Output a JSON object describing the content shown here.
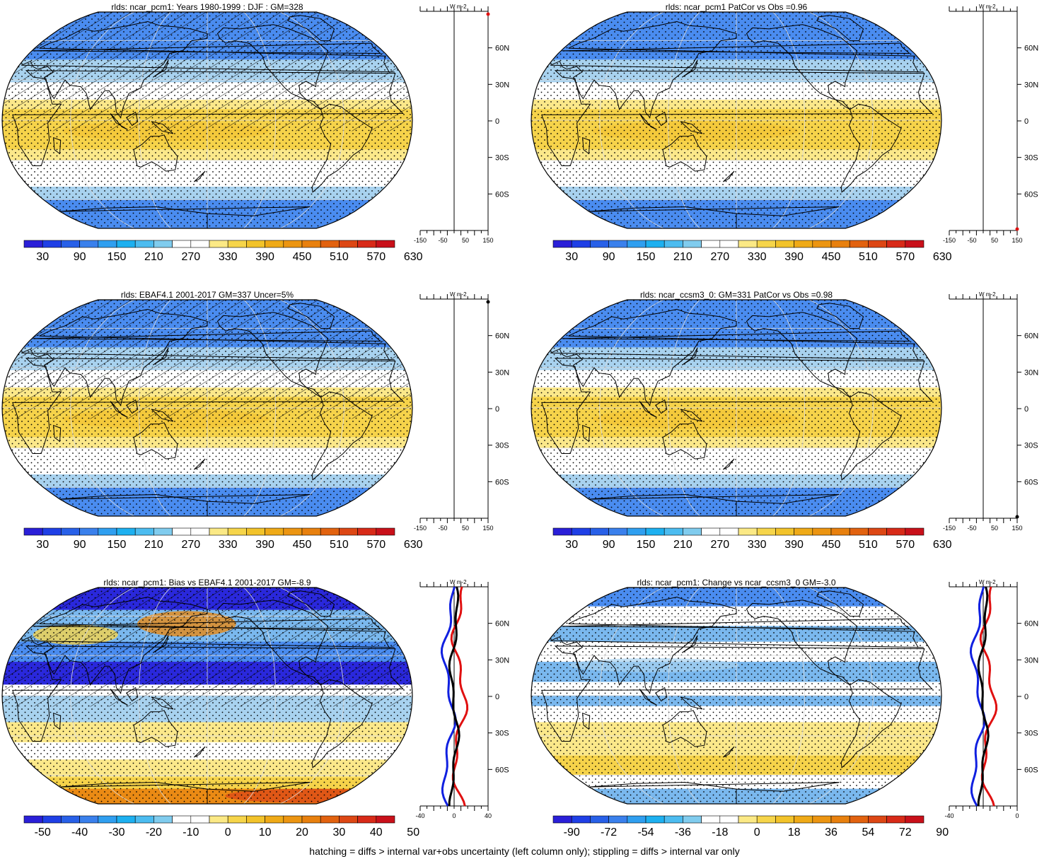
{
  "panels": [
    {
      "title": "rlds: ncar_pcm1: Years 1980-1999 : DJF : GM=328",
      "map_kind": "mean",
      "colorbar_labels": [
        "30",
        "90",
        "150",
        "210",
        "270",
        "330",
        "390",
        "450",
        "510",
        "570",
        "630"
      ],
      "profile_axis": {
        "unit": "W m-2",
        "x_ticks": [
          "-150",
          "-50",
          "50",
          "150"
        ],
        "lat_ticks": [
          "60N",
          "30N",
          "0",
          "30S",
          "60S"
        ]
      }
    },
    {
      "title": "rlds: ncar_pcm1 PatCor vs Obs =0.96",
      "map_kind": "mean",
      "colorbar_labels": [
        "30",
        "90",
        "150",
        "210",
        "270",
        "330",
        "390",
        "450",
        "510",
        "570",
        "630"
      ],
      "profile_axis": {
        "unit": "W m-2",
        "x_ticks": [
          "-150",
          "-50",
          "50",
          "150"
        ],
        "lat_ticks": [
          "60N",
          "30N",
          "0",
          "30S",
          "60S"
        ]
      }
    },
    {
      "title": "rlds: EBAF4.1 2001-2017 GM=337 Uncer=5%",
      "map_kind": "mean",
      "colorbar_labels": [
        "30",
        "90",
        "150",
        "210",
        "270",
        "330",
        "390",
        "450",
        "510",
        "570",
        "630"
      ],
      "profile_axis": {
        "unit": "W m-2",
        "x_ticks": [
          "-150",
          "-50",
          "50",
          "150"
        ],
        "lat_ticks": [
          "60N",
          "30N",
          "0",
          "30S",
          "60S"
        ]
      }
    },
    {
      "title": "rlds: ncar_ccsm3_0: GM=331 PatCor vs Obs =0.98",
      "map_kind": "mean",
      "colorbar_labels": [
        "30",
        "90",
        "150",
        "210",
        "270",
        "330",
        "390",
        "450",
        "510",
        "570",
        "630"
      ],
      "profile_axis": {
        "unit": "W m-2",
        "x_ticks": [
          "-150",
          "-50",
          "50",
          "150"
        ],
        "lat_ticks": [
          "60N",
          "30N",
          "0",
          "30S",
          "60S"
        ]
      }
    },
    {
      "title": "rlds: ncar_pcm1: Bias vs EBAF4.1 2001-2017 GM=-8.9",
      "map_kind": "bias",
      "colorbar_labels": [
        "-50",
        "-40",
        "-30",
        "-20",
        "-10",
        "0",
        "10",
        "20",
        "30",
        "40",
        "50"
      ],
      "profile_axis": {
        "unit": "W m-2",
        "x_ticks": [
          "-40",
          "0",
          "40"
        ],
        "lat_ticks": [
          "60N",
          "30N",
          "0",
          "30S",
          "60S"
        ]
      }
    },
    {
      "title": "rlds: ncar_pcm1: Change vs ncar_ccsm3_0 GM=-3.0",
      "map_kind": "change",
      "colorbar_labels": [
        "-90",
        "-72",
        "-54",
        "-36",
        "-18",
        "0",
        "18",
        "36",
        "54",
        "72",
        "90"
      ],
      "profile_axis": {
        "unit": "W m-2",
        "x_ticks": [
          "-40",
          "0"
        ],
        "lat_ticks": [
          "60N",
          "30N",
          "0",
          "30S",
          "60S"
        ]
      }
    }
  ],
  "colorbar_colors": [
    "#2a1fd8",
    "#1f3fe6",
    "#2860e8",
    "#3a80ec",
    "#2f9ff0",
    "#1db0f0",
    "#4cbcf0",
    "#80ccee",
    "#ffffff",
    "#ffffff",
    "#fbe985",
    "#f6d54a",
    "#f2c32a",
    "#efaa17",
    "#ec9511",
    "#e8800e",
    "#e2620f",
    "#dd4714",
    "#d82a18",
    "#c9101a"
  ],
  "colors": {
    "coast": "#000000",
    "grid": "#dddddd",
    "profile_black": "#000000",
    "profile_blue": "#1020e0",
    "profile_red": "#e01010"
  },
  "caption": "hatching = diffs > internal var+obs uncertainty (left column only); stippling = diffs > internal var only"
}
